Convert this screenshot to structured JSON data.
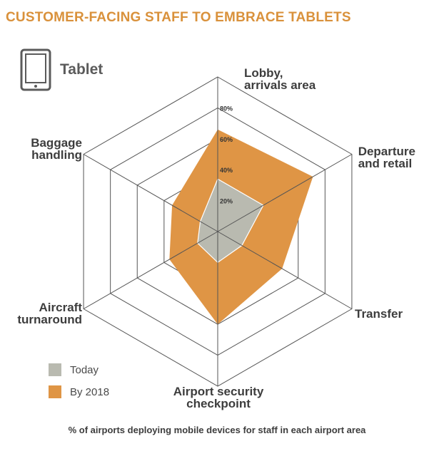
{
  "title": "CUSTOMER-FACING STAFF TO EMBRACE TABLETS",
  "device_label": "Tablet",
  "caption": "% of airports deploying mobile devices for staff in each airport area",
  "colors": {
    "title": "#d9913b",
    "today": "#b9bab0",
    "by2018": "#df9545",
    "grid": "#555555"
  },
  "icons": {
    "device": "tablet-icon"
  },
  "chart_data": {
    "type": "radar",
    "axes": [
      "Lobby, arrivals area",
      "Departure and retail",
      "Transfer",
      "Airport security checkpoint",
      "Aircraft turnaround",
      "Baggage handling"
    ],
    "axis_label_lines": [
      [
        "Lobby,",
        "arrivals area"
      ],
      [
        "Departure",
        "and retail"
      ],
      [
        "Transfer"
      ],
      [
        "Airport security",
        "checkpoint"
      ],
      [
        "Aircraft",
        "turnaround"
      ],
      [
        "Baggage",
        "handling"
      ]
    ],
    "r_ticks": [
      "20%",
      "40%",
      "60%",
      "80%"
    ],
    "r_max": 100,
    "series": [
      {
        "name": "By 2018",
        "values": [
          66,
          71,
          48,
          60,
          36,
          34
        ]
      },
      {
        "name": "Today",
        "values": [
          34,
          34,
          18,
          20,
          15,
          13
        ]
      }
    ],
    "legend": [
      {
        "label": "Today"
      },
      {
        "label": "By 2018"
      }
    ]
  }
}
